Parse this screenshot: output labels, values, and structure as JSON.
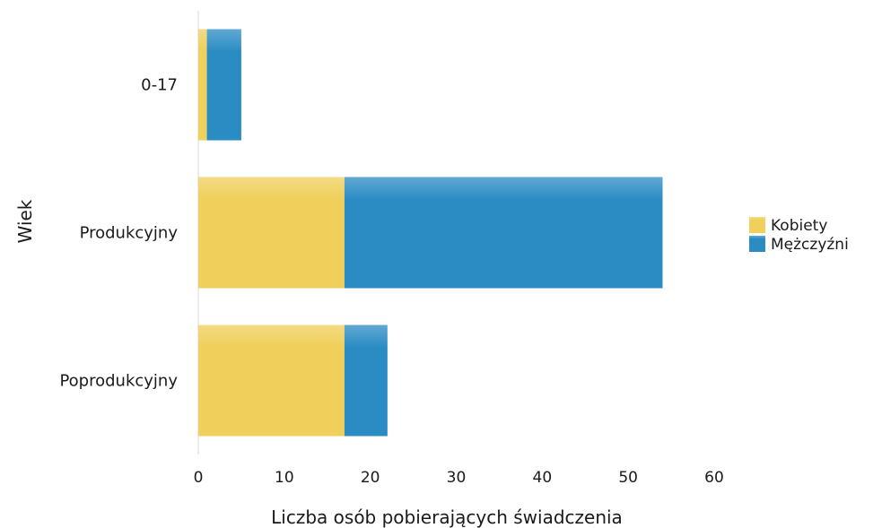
{
  "chart_data": {
    "type": "bar",
    "orientation": "horizontal",
    "stacked": true,
    "title": "",
    "xlabel": "Liczba osób pobierających świadczenia",
    "ylabel": "Wiek",
    "categories": [
      "0-17",
      "Produkcyjny",
      "Poprodukcyjny"
    ],
    "series": [
      {
        "name": "Kobiety",
        "values": [
          1,
          17,
          17
        ],
        "color": "#f0cf5a"
      },
      {
        "name": "Mężczyźni",
        "values": [
          4,
          37,
          5
        ],
        "color": "#2b8cc4"
      }
    ],
    "xlim": [
      0,
      60
    ],
    "xticks": [
      0,
      10,
      20,
      30,
      40,
      50,
      60
    ],
    "grid": false,
    "legend_position": "right"
  }
}
